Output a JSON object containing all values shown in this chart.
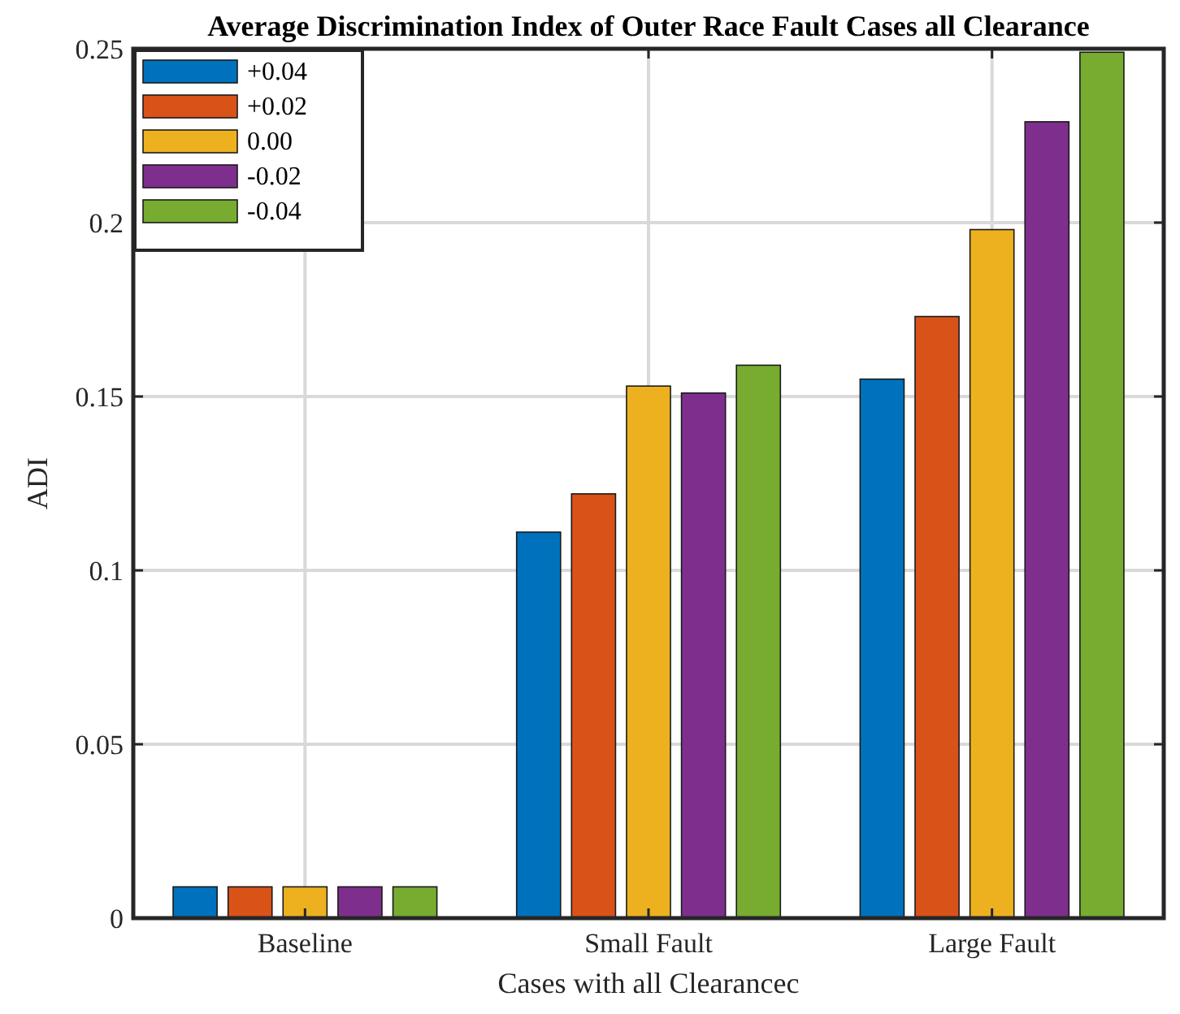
{
  "chart_data": {
    "type": "bar",
    "title": "Average Discrimination Index of Outer Race Fault Cases all Clearance",
    "xlabel": "Cases with all Clearancec",
    "ylabel": "ADI",
    "categories": [
      "Baseline",
      "Small Fault",
      "Large Fault"
    ],
    "series": [
      {
        "name": "+0.04",
        "color": "#0072bd",
        "values": [
          0.009,
          0.111,
          0.155
        ]
      },
      {
        "name": "+0.02",
        "color": "#d95319",
        "values": [
          0.009,
          0.122,
          0.173
        ]
      },
      {
        "name": "0.00",
        "color": "#edb120",
        "values": [
          0.009,
          0.153,
          0.198
        ]
      },
      {
        "name": "-0.02",
        "color": "#7e2f8e",
        "values": [
          0.009,
          0.151,
          0.229
        ]
      },
      {
        "name": "-0.04",
        "color": "#77ac30",
        "values": [
          0.009,
          0.159,
          0.249
        ]
      }
    ],
    "ylim": [
      0,
      0.25
    ],
    "yticks": [
      0,
      0.05,
      0.1,
      0.15,
      0.2,
      0.25
    ],
    "grid": true,
    "legend": "top left"
  }
}
